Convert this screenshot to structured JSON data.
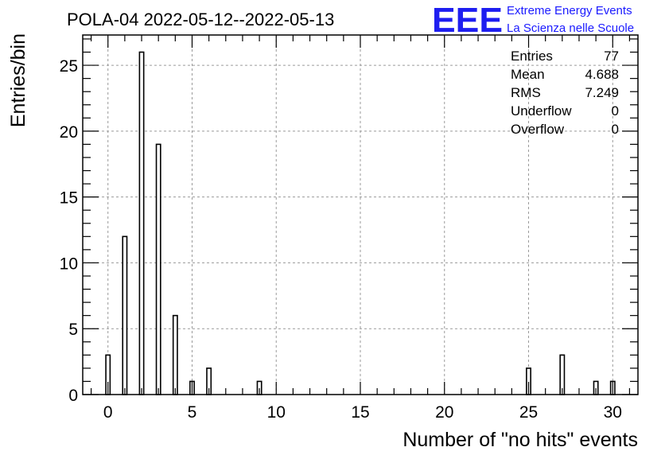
{
  "header": {
    "title": "POLA-04 2022-05-12--2022-05-13"
  },
  "logo": {
    "mark": "EEE",
    "line1": "Extreme Energy Events",
    "line2": "La Scienza nelle Scuole",
    "color": "#1a1aff"
  },
  "stats": {
    "entries_label": "Entries",
    "entries_value": "77",
    "mean_label": "Mean",
    "mean_value": "4.688",
    "rms_label": "RMS",
    "rms_value": "7.249",
    "underflow_label": "Underflow",
    "underflow_value": "0",
    "overflow_label": "Overflow",
    "overflow_value": "0"
  },
  "chart_data": {
    "type": "bar",
    "title": "POLA-04 2022-05-12--2022-05-13",
    "xlabel": "Number of \"no hits\" events",
    "ylabel": "Entries/bin",
    "xlim": [
      -1.5,
      31.5
    ],
    "ylim": [
      0,
      27.3
    ],
    "xticks": [
      0,
      5,
      10,
      15,
      20,
      25,
      30
    ],
    "yticks": [
      0,
      5,
      10,
      15,
      20,
      25
    ],
    "grid": true,
    "bin_width": 0.25,
    "bins": [
      {
        "x": 0,
        "count": 3
      },
      {
        "x": 1,
        "count": 12
      },
      {
        "x": 2,
        "count": 26
      },
      {
        "x": 3,
        "count": 19
      },
      {
        "x": 4,
        "count": 6
      },
      {
        "x": 5,
        "count": 1
      },
      {
        "x": 6,
        "count": 2
      },
      {
        "x": 9,
        "count": 1
      },
      {
        "x": 25,
        "count": 2
      },
      {
        "x": 27,
        "count": 3
      },
      {
        "x": 29,
        "count": 1
      },
      {
        "x": 30,
        "count": 1
      }
    ]
  }
}
